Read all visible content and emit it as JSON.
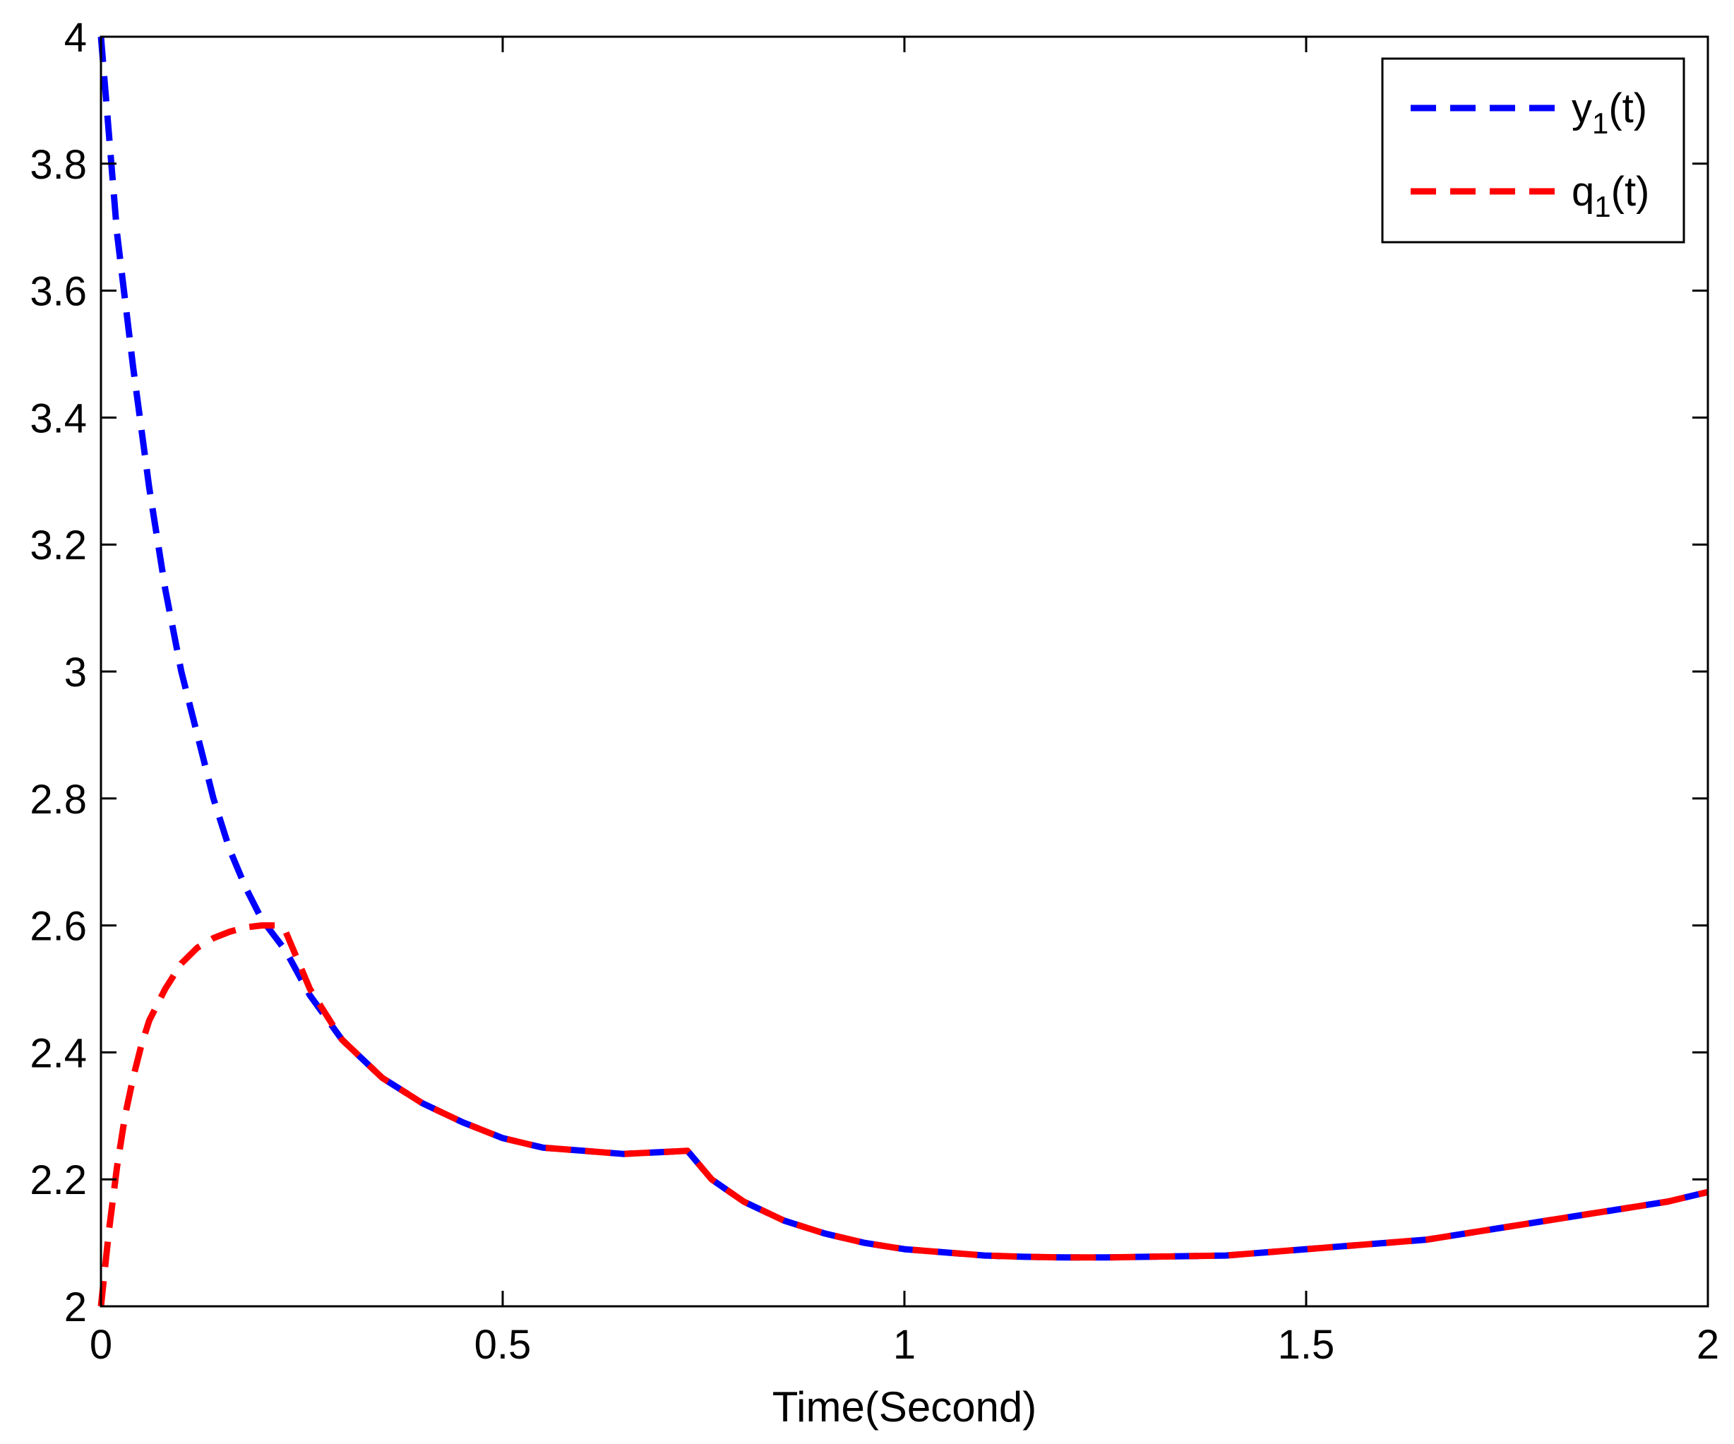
{
  "chart_data": {
    "type": "line",
    "title": "",
    "xlabel": "Time(Second)",
    "ylabel": "",
    "xlim": [
      0,
      2
    ],
    "ylim": [
      2,
      4
    ],
    "xticks": [
      0,
      0.5,
      1,
      1.5,
      2
    ],
    "xtick_labels": [
      "0",
      "0.5",
      "1",
      "1.5",
      "2"
    ],
    "yticks": [
      2,
      2.2,
      2.4,
      2.6,
      2.8,
      3,
      3.2,
      3.4,
      3.6,
      3.8,
      4
    ],
    "ytick_labels": [
      "2",
      "2.2",
      "2.4",
      "2.6",
      "2.8",
      "3",
      "3.2",
      "3.4",
      "3.6",
      "3.8",
      "4"
    ],
    "grid": false,
    "legend_position": "top-right",
    "series": [
      {
        "legend": {
          "base": "y",
          "sub": "1",
          "suffix": "(t)"
        },
        "color": "#0000ff",
        "style": "dashed",
        "x": [
          0,
          0.02,
          0.04,
          0.06,
          0.08,
          0.1,
          0.12,
          0.14,
          0.16,
          0.18,
          0.2,
          0.23,
          0.26,
          0.3,
          0.35,
          0.4,
          0.45,
          0.5,
          0.55,
          0.6,
          0.65,
          0.7,
          0.73,
          0.76,
          0.8,
          0.85,
          0.9,
          0.95,
          1.0,
          1.05,
          1.1,
          1.15,
          1.2,
          1.25,
          1.3,
          1.35,
          1.4,
          1.45,
          1.5,
          1.55,
          1.6,
          1.65,
          1.7,
          1.75,
          1.8,
          1.85,
          1.9,
          1.95,
          2.0
        ],
        "y": [
          4.0,
          3.69,
          3.48,
          3.29,
          3.13,
          3.0,
          2.9,
          2.8,
          2.72,
          2.66,
          2.61,
          2.56,
          2.49,
          2.42,
          2.36,
          2.32,
          2.29,
          2.265,
          2.25,
          2.245,
          2.24,
          2.243,
          2.245,
          2.2,
          2.165,
          2.135,
          2.115,
          2.1,
          2.09,
          2.085,
          2.08,
          2.078,
          2.077,
          2.077,
          2.078,
          2.079,
          2.08,
          2.085,
          2.09,
          2.095,
          2.1,
          2.105,
          2.115,
          2.125,
          2.135,
          2.145,
          2.155,
          2.165,
          2.18
        ]
      },
      {
        "legend": {
          "base": "q",
          "sub": "1",
          "suffix": "(t)"
        },
        "color": "#ff0000",
        "style": "dashed",
        "x": [
          0,
          0.01,
          0.02,
          0.03,
          0.04,
          0.05,
          0.06,
          0.08,
          0.1,
          0.12,
          0.14,
          0.16,
          0.18,
          0.2,
          0.22,
          0.23,
          0.26,
          0.3,
          0.35,
          0.4,
          0.45,
          0.5,
          0.55,
          0.6,
          0.65,
          0.7,
          0.73,
          0.76,
          0.8,
          0.85,
          0.9,
          0.95,
          1.0,
          1.05,
          1.1,
          1.15,
          1.2,
          1.25,
          1.3,
          1.35,
          1.4,
          1.45,
          1.5,
          1.55,
          1.6,
          1.65,
          1.7,
          1.75,
          1.8,
          1.85,
          1.9,
          1.95,
          2.0
        ],
        "y": [
          2.0,
          2.12,
          2.22,
          2.3,
          2.36,
          2.41,
          2.45,
          2.5,
          2.54,
          2.565,
          2.58,
          2.59,
          2.597,
          2.6,
          2.6,
          2.59,
          2.5,
          2.42,
          2.36,
          2.32,
          2.29,
          2.265,
          2.25,
          2.245,
          2.24,
          2.243,
          2.245,
          2.2,
          2.165,
          2.135,
          2.115,
          2.1,
          2.09,
          2.085,
          2.08,
          2.078,
          2.077,
          2.077,
          2.078,
          2.079,
          2.08,
          2.085,
          2.09,
          2.095,
          2.1,
          2.105,
          2.115,
          2.125,
          2.135,
          2.145,
          2.155,
          2.165,
          2.18
        ]
      }
    ]
  }
}
